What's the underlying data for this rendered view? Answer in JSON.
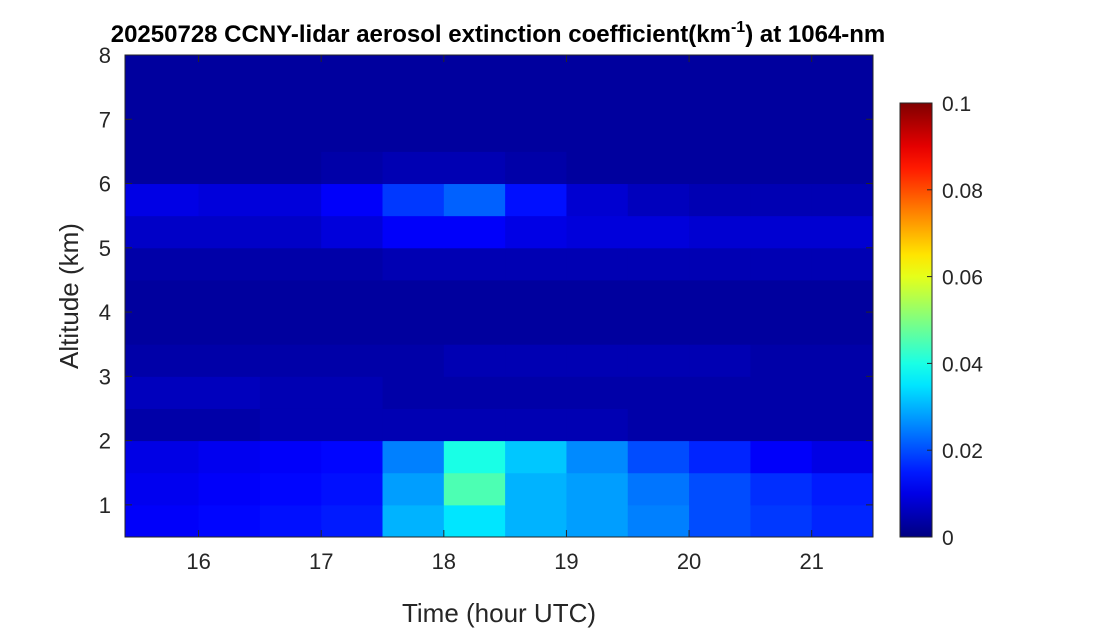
{
  "chart_data": {
    "type": "heatmap",
    "title_parts": [
      "20250728 CCNY-lidar aerosol extinction coefficient(km",
      "-1",
      ") at 1064-nm"
    ],
    "x_label": "Time (hour UTC)",
    "y_label": "Altitude (km)",
    "xlim": [
      15.4,
      21.5
    ],
    "ylim": [
      0.5,
      8
    ],
    "xticks": [
      16,
      17,
      18,
      19,
      20,
      21
    ],
    "yticks": [
      1,
      2,
      3,
      4,
      5,
      6,
      7,
      8
    ],
    "clim": [
      0,
      0.1
    ],
    "cticks": [
      0,
      0.02,
      0.04,
      0.06,
      0.08,
      0.1
    ],
    "colormap": "jet",
    "x_edges": [
      15.4,
      16,
      16.5,
      17,
      17.5,
      18,
      18.5,
      19,
      19.5,
      20,
      20.5,
      21,
      21.5
    ],
    "y_edges": [
      0.5,
      1,
      1.5,
      2,
      2.5,
      3,
      3.5,
      4,
      4.5,
      5,
      5.5,
      6,
      6.5,
      7,
      7.5,
      8
    ],
    "z": [
      [
        0.012,
        0.013,
        0.014,
        0.015,
        0.03,
        0.035,
        0.03,
        0.028,
        0.025,
        0.02,
        0.018,
        0.016
      ],
      [
        0.011,
        0.012,
        0.013,
        0.014,
        0.028,
        0.045,
        0.03,
        0.028,
        0.024,
        0.02,
        0.017,
        0.015
      ],
      [
        0.01,
        0.011,
        0.012,
        0.013,
        0.025,
        0.04,
        0.032,
        0.026,
        0.02,
        0.016,
        0.012,
        0.01
      ],
      [
        0.004,
        0.004,
        0.005,
        0.005,
        0.005,
        0.005,
        0.005,
        0.005,
        0.004,
        0.004,
        0.004,
        0.004
      ],
      [
        0.006,
        0.006,
        0.005,
        0.005,
        0.004,
        0.004,
        0.004,
        0.004,
        0.004,
        0.004,
        0.004,
        0.004
      ],
      [
        0.004,
        0.004,
        0.004,
        0.004,
        0.004,
        0.005,
        0.005,
        0.005,
        0.005,
        0.005,
        0.004,
        0.004
      ],
      [
        0.003,
        0.003,
        0.003,
        0.003,
        0.003,
        0.003,
        0.003,
        0.003,
        0.003,
        0.003,
        0.003,
        0.003
      ],
      [
        0.003,
        0.003,
        0.003,
        0.003,
        0.003,
        0.003,
        0.003,
        0.003,
        0.003,
        0.003,
        0.003,
        0.003
      ],
      [
        0.004,
        0.004,
        0.004,
        0.004,
        0.005,
        0.005,
        0.005,
        0.005,
        0.005,
        0.005,
        0.005,
        0.005
      ],
      [
        0.007,
        0.007,
        0.007,
        0.009,
        0.012,
        0.012,
        0.01,
        0.009,
        0.009,
        0.008,
        0.008,
        0.008
      ],
      [
        0.01,
        0.009,
        0.009,
        0.012,
        0.018,
        0.022,
        0.014,
        0.008,
        0.006,
        0.005,
        0.005,
        0.005
      ],
      [
        0.003,
        0.003,
        0.003,
        0.004,
        0.005,
        0.005,
        0.004,
        0.003,
        0.003,
        0.003,
        0.003,
        0.003
      ],
      [
        0.003,
        0.003,
        0.003,
        0.003,
        0.003,
        0.003,
        0.003,
        0.003,
        0.003,
        0.003,
        0.003,
        0.003
      ],
      [
        0.003,
        0.003,
        0.003,
        0.003,
        0.003,
        0.003,
        0.003,
        0.003,
        0.003,
        0.003,
        0.003,
        0.003
      ],
      [
        0.003,
        0.003,
        0.003,
        0.003,
        0.003,
        0.003,
        0.003,
        0.003,
        0.003,
        0.003,
        0.003,
        0.003
      ]
    ]
  }
}
